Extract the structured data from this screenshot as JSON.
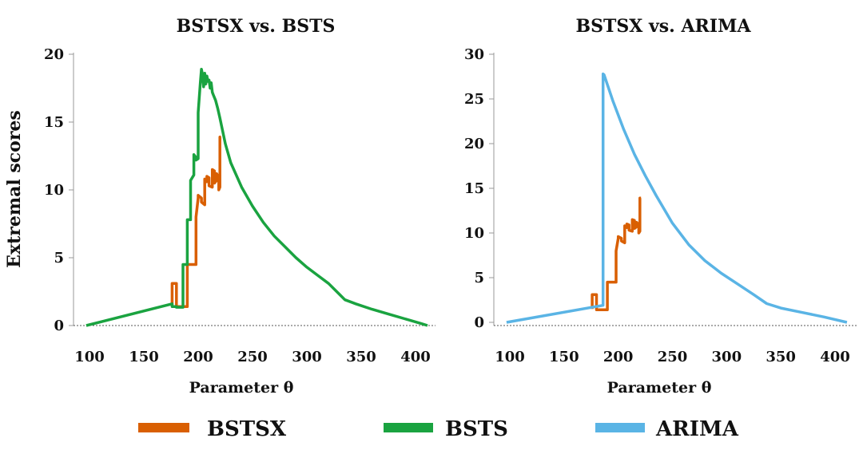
{
  "colors": {
    "BSTSX": "#d95f02",
    "BSTS": "#1aa340",
    "ARIMA": "#5ab4e5"
  },
  "chart_data": [
    {
      "type": "line",
      "title": "BSTSX vs. BSTS",
      "xlabel": "Parameter θ",
      "ylabel": "Extremal scores",
      "xlim": [
        95,
        415
      ],
      "ylim": [
        0,
        20
      ],
      "xticks": [
        100,
        150,
        200,
        250,
        300,
        350,
        400
      ],
      "yticks": [
        0,
        5,
        10,
        15,
        20
      ],
      "series": [
        {
          "name": "BSTSX",
          "color": "#d95f02",
          "x": [
            176,
            176,
            180,
            180,
            190,
            190,
            198,
            198,
            200,
            200,
            203,
            203,
            206,
            206,
            208,
            208,
            210,
            210,
            213,
            213,
            215,
            215,
            217,
            217,
            219,
            219,
            220,
            220,
            221
          ],
          "y": [
            1.5,
            3.1,
            3.1,
            1.4,
            1.4,
            4.5,
            4.5,
            8.0,
            9.4,
            9.6,
            9.4,
            9.1,
            8.9,
            10.8,
            10.6,
            11.0,
            10.9,
            10.3,
            10.2,
            11.5,
            11.4,
            10.5,
            10.7,
            11.2,
            10.9,
            10.0,
            10.2,
            13.9,
            13.9
          ]
        },
        {
          "name": "BSTS",
          "color": "#1aa340",
          "x": [
            97,
            176,
            176,
            180,
            180,
            186,
            186,
            190,
            190,
            193,
            193,
            196,
            196,
            198,
            198,
            200,
            200,
            202,
            203,
            204,
            205,
            206,
            207,
            208,
            209,
            210,
            211,
            212,
            213,
            214,
            216,
            218,
            220,
            225,
            230,
            240,
            250,
            260,
            270,
            280,
            290,
            300,
            310,
            320,
            330,
            335,
            345,
            360,
            375,
            390,
            405,
            411
          ],
          "y": [
            0,
            1.6,
            1.4,
            1.4,
            1.35,
            1.35,
            4.5,
            4.5,
            7.8,
            7.8,
            10.7,
            11.1,
            12.6,
            12.4,
            12.2,
            12.3,
            15.7,
            17.9,
            18.9,
            18.5,
            17.6,
            18.6,
            17.8,
            18.4,
            18.0,
            18.1,
            17.5,
            17.9,
            17.2,
            17.0,
            16.6,
            16.0,
            15.3,
            13.4,
            12.0,
            10.2,
            8.8,
            7.6,
            6.6,
            5.8,
            5.0,
            4.3,
            3.7,
            3.1,
            2.3,
            1.9,
            1.6,
            1.2,
            0.85,
            0.5,
            0.15,
            0
          ]
        }
      ],
      "legend": "bottom"
    },
    {
      "type": "line",
      "title": "BSTSX vs. ARIMA",
      "xlabel": "Parameter θ",
      "ylabel": "",
      "xlim": [
        95,
        415
      ],
      "ylim": [
        0,
        30
      ],
      "xticks": [
        100,
        150,
        200,
        250,
        300,
        350,
        400
      ],
      "yticks": [
        0,
        5,
        10,
        15,
        20,
        25,
        30
      ],
      "series": [
        {
          "name": "BSTSX",
          "color": "#d95f02",
          "x": [
            176,
            176,
            180,
            180,
            190,
            190,
            198,
            198,
            200,
            200,
            203,
            203,
            206,
            206,
            208,
            208,
            210,
            210,
            213,
            213,
            215,
            215,
            217,
            217,
            219,
            219,
            220,
            220,
            221
          ],
          "y": [
            1.5,
            3.1,
            3.1,
            1.4,
            1.4,
            4.5,
            4.5,
            8.0,
            9.4,
            9.6,
            9.4,
            9.1,
            8.9,
            10.8,
            10.6,
            11.0,
            10.9,
            10.3,
            10.2,
            11.5,
            11.4,
            10.5,
            10.7,
            11.2,
            10.9,
            10.0,
            10.2,
            13.9,
            13.9
          ]
        },
        {
          "name": "ARIMA",
          "color": "#5ab4e5",
          "x": [
            97,
            186,
            186,
            187,
            195,
            205,
            215,
            225,
            235,
            250,
            265,
            280,
            295,
            310,
            325,
            337,
            350,
            370,
            390,
            411
          ],
          "y": [
            0,
            1.9,
            27.8,
            27.7,
            24.8,
            21.6,
            18.8,
            16.4,
            14.2,
            11.1,
            8.7,
            6.9,
            5.5,
            4.3,
            3.1,
            2.1,
            1.6,
            1.1,
            0.6,
            0
          ]
        }
      ],
      "legend": "bottom"
    }
  ],
  "legend": [
    {
      "label": "BSTSX",
      "color": "#d95f02"
    },
    {
      "label": "BSTS",
      "color": "#1aa340"
    },
    {
      "label": "ARIMA",
      "color": "#5ab4e5"
    }
  ]
}
